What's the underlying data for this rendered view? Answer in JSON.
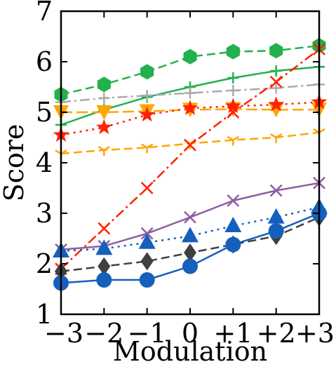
{
  "chart_data": {
    "type": "line",
    "xlabel": "Modulation",
    "ylabel": "Score",
    "x": [
      -3,
      -2,
      -1,
      0,
      1,
      2,
      3
    ],
    "xticklabels": [
      "−3",
      "−2",
      "−1",
      "0",
      "+1",
      "+2",
      "+3"
    ],
    "yticks": [
      1,
      2,
      3,
      4,
      5,
      6,
      7
    ],
    "ylim": [
      1,
      7
    ],
    "xlim": [
      -3,
      3
    ],
    "grid": false,
    "legend": "none",
    "series": [
      {
        "values": [
          5.35,
          5.55,
          5.8,
          6.1,
          6.2,
          6.22,
          6.32
        ],
        "color": "#22b14c",
        "marker": "hexagon",
        "linestyle": "dashed"
      },
      {
        "values": [
          4.75,
          5.05,
          5.3,
          5.5,
          5.68,
          5.82,
          5.9
        ],
        "color": "#22b14c",
        "marker": "plus",
        "linestyle": "solid"
      },
      {
        "values": [
          5.2,
          5.28,
          5.33,
          5.38,
          5.43,
          5.48,
          5.55
        ],
        "color": "#aaaaaa",
        "marker": "plus",
        "linestyle": "dashdot"
      },
      {
        "values": [
          5.0,
          5.0,
          5.02,
          5.05,
          5.06,
          5.05,
          5.05
        ],
        "color": "#ffa500",
        "marker": "triangle-down",
        "linestyle": "longdash"
      },
      {
        "values": [
          4.55,
          4.7,
          4.95,
          5.08,
          5.12,
          5.15,
          5.2
        ],
        "color": "#ff2200",
        "marker": "star",
        "linestyle": "dotted"
      },
      {
        "values": [
          4.18,
          4.25,
          4.3,
          4.38,
          4.45,
          4.5,
          4.6
        ],
        "color": "#ffa500",
        "marker": "tri",
        "linestyle": "dashed"
      },
      {
        "values": [
          1.9,
          2.7,
          3.5,
          4.35,
          5.0,
          5.6,
          6.25
        ],
        "color": "#ff2200",
        "marker": "x",
        "linestyle": "dashdot"
      },
      {
        "values": [
          2.28,
          2.35,
          2.6,
          2.92,
          3.25,
          3.45,
          3.6
        ],
        "color": "#8e5ea2",
        "marker": "x",
        "linestyle": "solid"
      },
      {
        "values": [
          2.25,
          2.3,
          2.42,
          2.55,
          2.75,
          2.92,
          3.12
        ],
        "color": "#1560bd",
        "marker": "triangle-up",
        "linestyle": "dotted"
      },
      {
        "values": [
          1.85,
          1.95,
          2.05,
          2.22,
          2.38,
          2.55,
          2.92
        ],
        "color": "#404040",
        "marker": "diamond",
        "linestyle": "dashed"
      },
      {
        "values": [
          1.62,
          1.68,
          1.68,
          1.95,
          2.38,
          2.65,
          3.0
        ],
        "color": "#1560bd",
        "marker": "circle",
        "linestyle": "solid"
      }
    ]
  }
}
